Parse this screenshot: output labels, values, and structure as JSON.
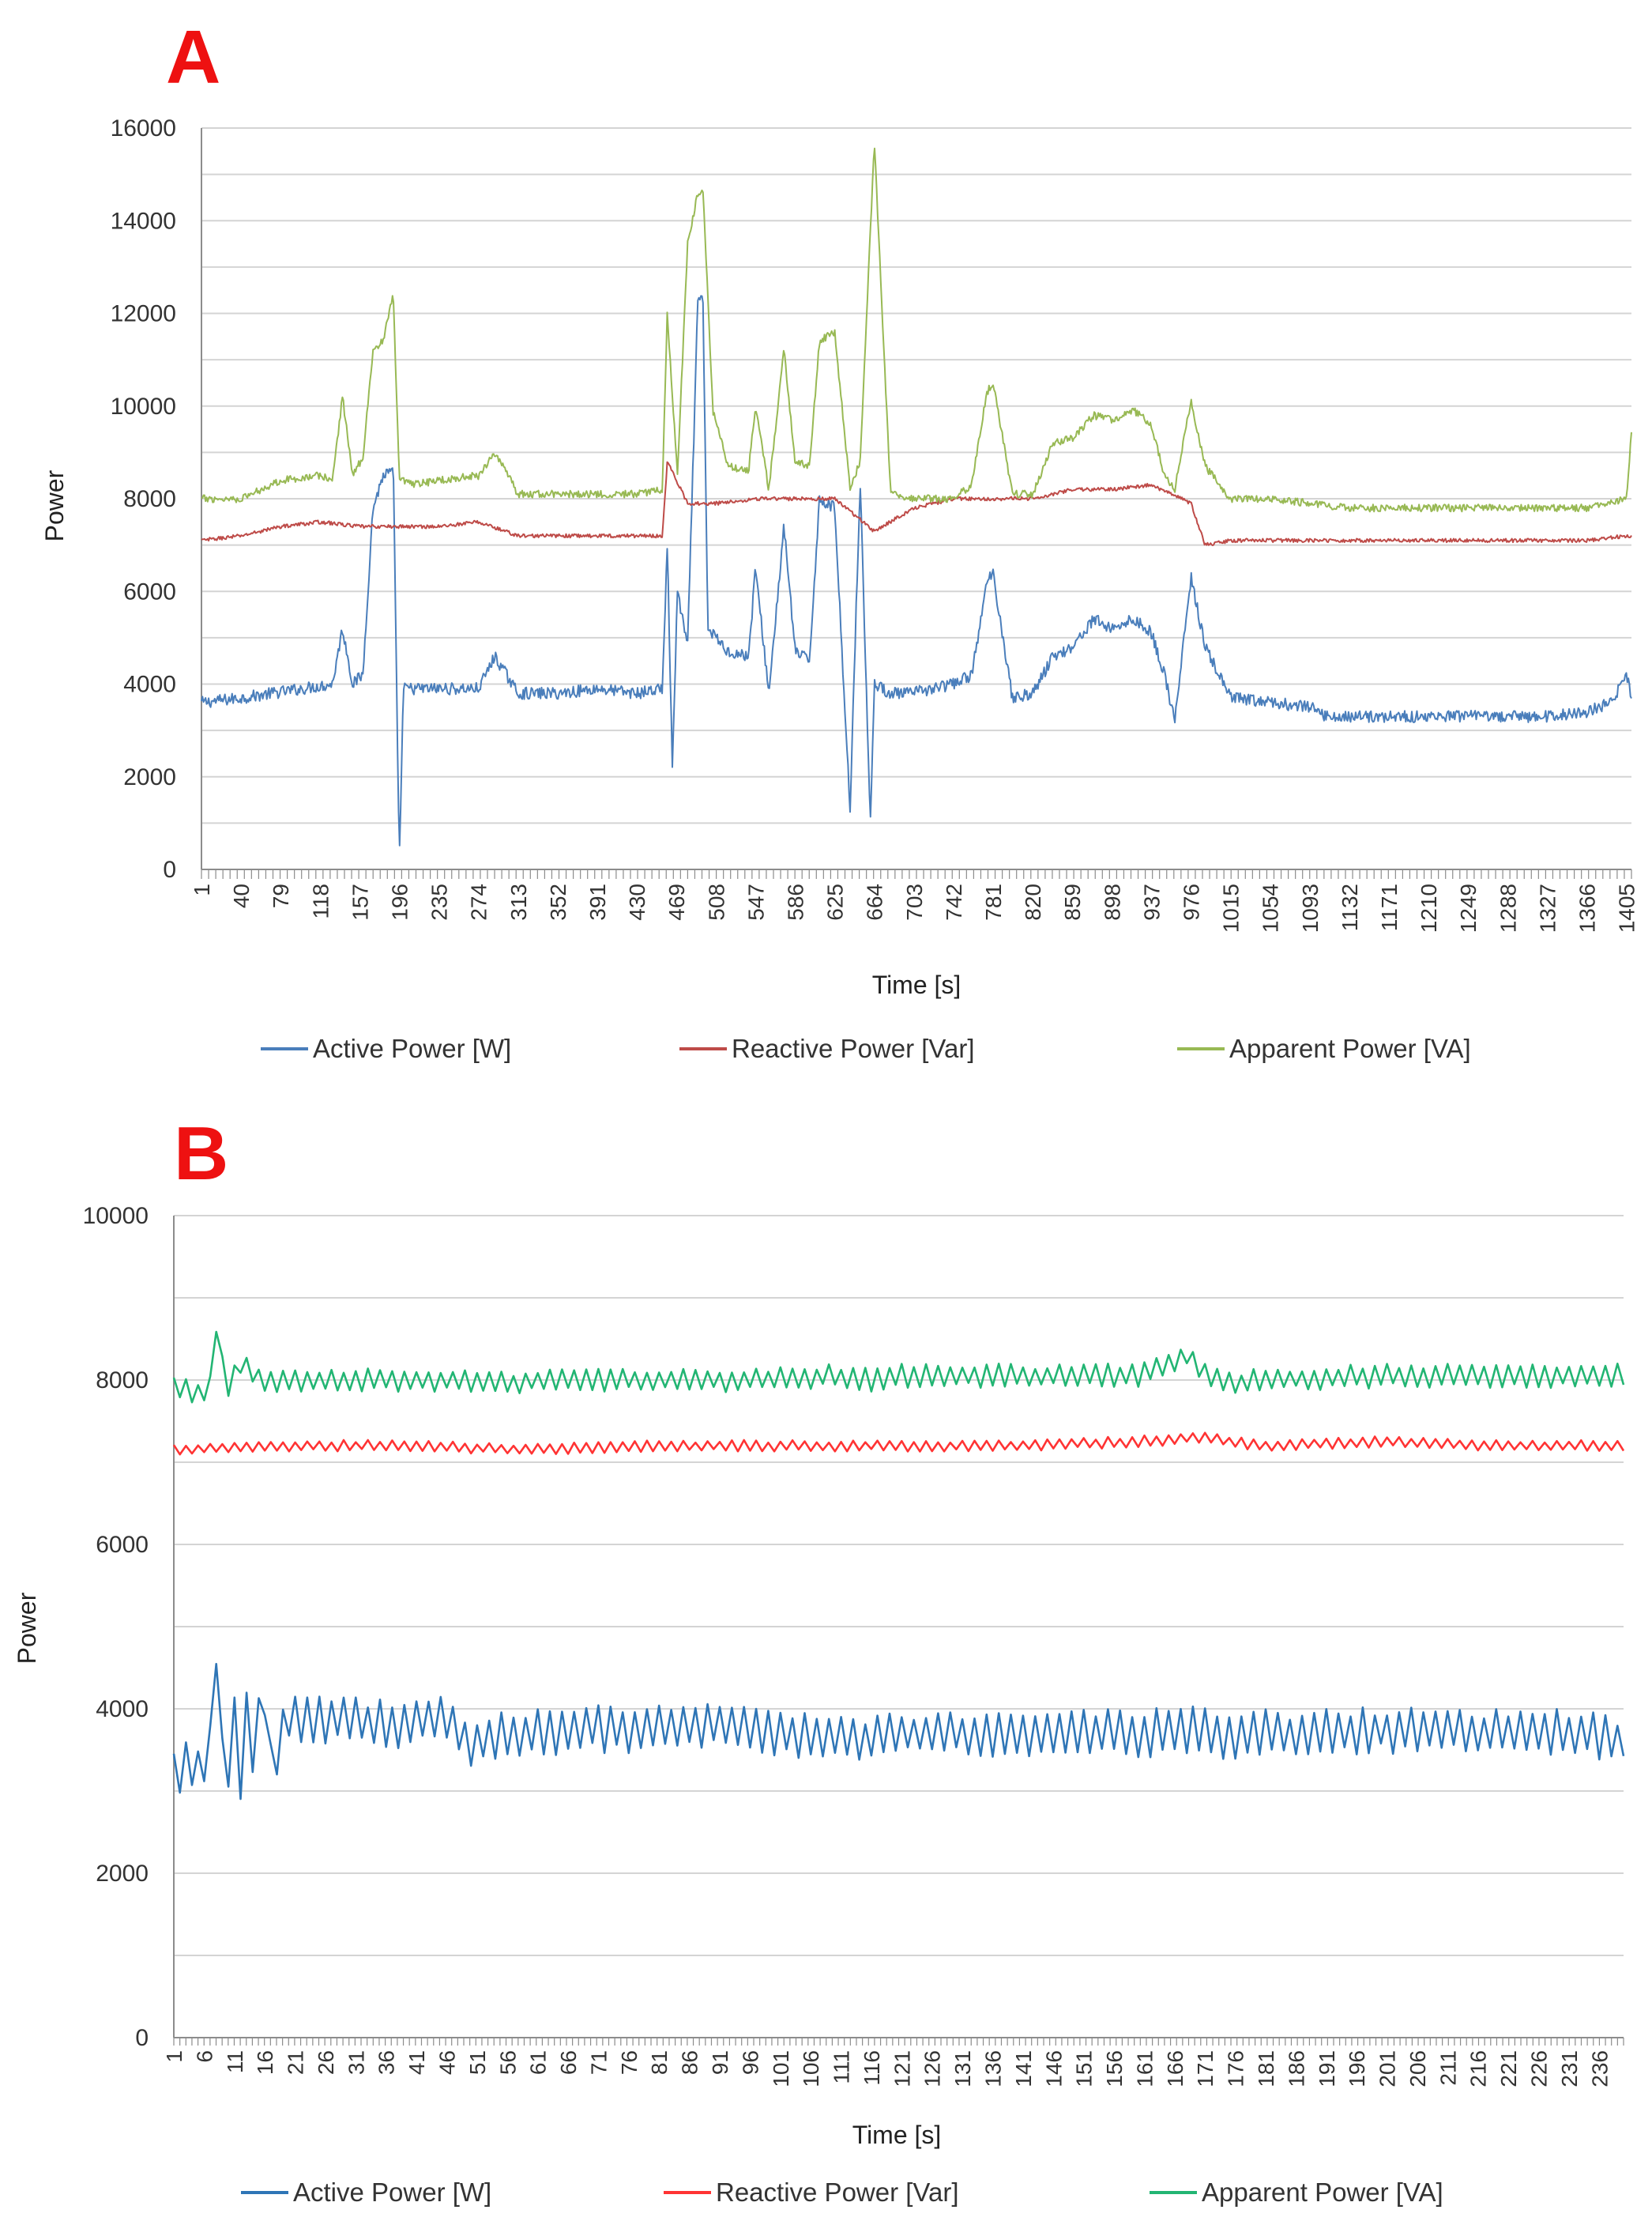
{
  "chart_data": [
    {
      "panel": "A",
      "type": "line",
      "title": "",
      "xlabel": "Time [s]",
      "ylabel": "Power",
      "ylim": [
        0,
        16000
      ],
      "yticks": [
        0,
        2000,
        4000,
        6000,
        8000,
        10000,
        12000,
        14000,
        16000
      ],
      "xlim": [
        1,
        1410
      ],
      "xticks": [
        1,
        40,
        79,
        118,
        157,
        196,
        235,
        274,
        313,
        352,
        391,
        430,
        469,
        508,
        547,
        586,
        625,
        664,
        703,
        742,
        781,
        820,
        859,
        898,
        937,
        976,
        1015,
        1054,
        1093,
        1132,
        1171,
        1210,
        1249,
        1288,
        1327,
        1366,
        1405
      ],
      "grid": true,
      "legend_position": "bottom",
      "series": [
        {
          "name": "Active Power [W]",
          "color": "#4a7ebb",
          "x": [
            1,
            40,
            100,
            130,
            140,
            150,
            160,
            170,
            180,
            190,
            196,
            200,
            235,
            274,
            290,
            313,
            352,
            391,
            430,
            455,
            460,
            465,
            470,
            480,
            490,
            495,
            500,
            520,
            540,
            547,
            560,
            575,
            586,
            600,
            610,
            625,
            640,
            650,
            660,
            664,
            680,
            700,
            742,
            760,
            775,
            781,
            800,
            820,
            840,
            859,
            880,
            898,
            920,
            937,
            950,
            960,
            976,
            990,
            1015,
            1054,
            1093,
            1110,
            1132,
            1171,
            1210,
            1249,
            1288,
            1327,
            1366,
            1390,
            1405,
            1410
          ],
          "y": [
            3600,
            3700,
            3900,
            4000,
            5200,
            4000,
            4200,
            7800,
            8500,
            8600,
            200,
            3900,
            3900,
            3900,
            4600,
            3800,
            3800,
            3900,
            3800,
            3900,
            7000,
            2200,
            6000,
            4800,
            12200,
            12400,
            5200,
            4700,
            4600,
            6500,
            3800,
            7400,
            4700,
            4500,
            8000,
            7800,
            1300,
            8400,
            1000,
            4000,
            3800,
            3800,
            4000,
            4200,
            6200,
            6400,
            3700,
            3800,
            4600,
            4800,
            5400,
            5200,
            5400,
            5100,
            4200,
            3200,
            6300,
            4800,
            3700,
            3600,
            3500,
            3300,
            3300,
            3300,
            3300,
            3300,
            3300,
            3300,
            3400,
            3600,
            4200,
            3700
          ]
        },
        {
          "name": "Reactive Power  [Var]",
          "color": "#be4b48",
          "x": [
            1,
            40,
            79,
            118,
            157,
            196,
            235,
            274,
            313,
            352,
            391,
            430,
            455,
            460,
            480,
            508,
            547,
            586,
            625,
            664,
            703,
            742,
            781,
            820,
            859,
            898,
            937,
            976,
            990,
            1015,
            1054,
            1093,
            1132,
            1171,
            1210,
            1249,
            1288,
            1327,
            1366,
            1405,
            1410
          ],
          "y": [
            7100,
            7200,
            7400,
            7500,
            7400,
            7400,
            7400,
            7500,
            7200,
            7200,
            7200,
            7200,
            7200,
            8800,
            7900,
            7900,
            8000,
            8000,
            8000,
            7300,
            7800,
            8000,
            8000,
            8000,
            8200,
            8200,
            8300,
            7900,
            7000,
            7100,
            7100,
            7100,
            7100,
            7100,
            7100,
            7100,
            7100,
            7100,
            7100,
            7200,
            7200
          ]
        },
        {
          "name": "Apparent Power [VA]",
          "color": "#98b954",
          "x": [
            1,
            40,
            79,
            118,
            130,
            140,
            150,
            160,
            170,
            180,
            190,
            196,
            210,
            235,
            274,
            290,
            313,
            352,
            391,
            430,
            455,
            460,
            470,
            480,
            490,
            495,
            505,
            520,
            540,
            547,
            560,
            575,
            586,
            600,
            610,
            625,
            640,
            650,
            664,
            680,
            703,
            742,
            760,
            775,
            781,
            800,
            820,
            840,
            859,
            880,
            898,
            920,
            937,
            950,
            960,
            976,
            990,
            1015,
            1054,
            1093,
            1132,
            1171,
            1210,
            1249,
            1288,
            1327,
            1366,
            1390,
            1405,
            1410
          ],
          "y": [
            8000,
            8000,
            8400,
            8500,
            8400,
            10200,
            8500,
            8900,
            11200,
            11400,
            12400,
            8400,
            8300,
            8400,
            8500,
            9000,
            8100,
            8100,
            8100,
            8100,
            8200,
            12000,
            8500,
            13500,
            14600,
            14700,
            9900,
            8700,
            8600,
            10000,
            8200,
            11200,
            8800,
            8700,
            11400,
            11600,
            8200,
            8800,
            15700,
            8100,
            8000,
            8000,
            8300,
            10300,
            10500,
            8100,
            8100,
            9200,
            9300,
            9800,
            9700,
            9900,
            9600,
            8500,
            8200,
            10100,
            8700,
            8000,
            8000,
            7900,
            7800,
            7800,
            7800,
            7800,
            7800,
            7800,
            7800,
            7900,
            8000,
            9400
          ]
        }
      ]
    },
    {
      "panel": "B",
      "type": "line",
      "title": "",
      "xlabel": "Time [s]",
      "ylabel": "Power",
      "ylim": [
        0,
        10000
      ],
      "yticks": [
        0,
        2000,
        4000,
        6000,
        8000,
        10000
      ],
      "xlim": [
        1,
        240
      ],
      "xticks": [
        1,
        6,
        11,
        16,
        21,
        26,
        31,
        36,
        41,
        46,
        51,
        56,
        61,
        66,
        71,
        76,
        81,
        86,
        91,
        96,
        101,
        106,
        111,
        116,
        121,
        126,
        131,
        136,
        141,
        146,
        151,
        156,
        161,
        166,
        171,
        176,
        181,
        186,
        191,
        196,
        201,
        206,
        211,
        216,
        221,
        226,
        231,
        236
      ],
      "grid": true,
      "legend_position": "bottom",
      "series": [
        {
          "name": "Active Power [W]",
          "color": "#2e75b6",
          "x": [
            1,
            3,
            5,
            6,
            7,
            8,
            9,
            10,
            11,
            12,
            13,
            14,
            15,
            16,
            17,
            20,
            30,
            40,
            45,
            50,
            55,
            60,
            70,
            80,
            90,
            100,
            110,
            113,
            116,
            120,
            130,
            140,
            150,
            160,
            170,
            172,
            175,
            180,
            190,
            200,
            210,
            220,
            230,
            235,
            238,
            240
          ],
          "y": [
            3200,
            3300,
            3250,
            3400,
            3600,
            4800,
            3400,
            3300,
            3900,
            3200,
            4000,
            3400,
            3900,
            4200,
            3300,
            3900,
            3850,
            3800,
            3900,
            3600,
            3700,
            3700,
            3750,
            3750,
            3800,
            3700,
            3700,
            3600,
            3600,
            3700,
            3700,
            3700,
            3700,
            3700,
            3750,
            3700,
            3600,
            3700,
            3700,
            3750,
            3750,
            3700,
            3700,
            3700,
            3600,
            3600
          ]
        },
        {
          "name": "Reactive Power  [Var]",
          "color": "#ff3333",
          "x": [
            1,
            20,
            40,
            60,
            80,
            100,
            120,
            140,
            160,
            170,
            180,
            200,
            220,
            240
          ],
          "y": [
            7150,
            7200,
            7200,
            7150,
            7200,
            7200,
            7200,
            7200,
            7250,
            7300,
            7200,
            7250,
            7200,
            7200
          ]
        },
        {
          "name": "Apparent Power [VA]",
          "color": "#22b573",
          "x": [
            1,
            3,
            5,
            7,
            8,
            9,
            10,
            12,
            15,
            20,
            40,
            52,
            56,
            60,
            80,
            100,
            110,
            115,
            120,
            140,
            160,
            168,
            172,
            176,
            180,
            200,
            220,
            240
          ],
          "y": [
            7900,
            7900,
            7800,
            7900,
            8700,
            8200,
            7900,
            8200,
            8000,
            8000,
            8000,
            8000,
            7950,
            8000,
            8000,
            8000,
            8050,
            8000,
            8050,
            8050,
            8050,
            8300,
            8050,
            7950,
            8000,
            8050,
            8050,
            8050
          ]
        }
      ]
    }
  ]
}
